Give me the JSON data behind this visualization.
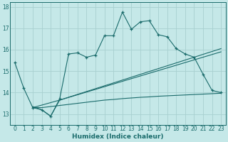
{
  "xlabel": "Humidex (Indice chaleur)",
  "bg_color": "#c5e8e8",
  "grid_color": "#a8d0d0",
  "line_color": "#1a6b6b",
  "xlim": [
    -0.5,
    23.5
  ],
  "ylim": [
    12.5,
    18.2
  ],
  "yticks": [
    13,
    14,
    15,
    16,
    17,
    18
  ],
  "xticks": [
    0,
    1,
    2,
    3,
    4,
    5,
    6,
    7,
    8,
    9,
    10,
    11,
    12,
    13,
    14,
    15,
    16,
    17,
    18,
    19,
    20,
    21,
    22,
    23
  ],
  "series1_x": [
    0,
    1,
    2,
    3,
    4,
    5,
    6,
    7,
    8,
    9,
    10,
    11,
    12,
    13,
    14,
    15,
    16,
    17,
    18,
    19,
    20,
    21,
    22,
    23
  ],
  "series1_y": [
    15.4,
    14.2,
    13.3,
    13.2,
    12.9,
    13.7,
    15.8,
    15.85,
    15.65,
    15.75,
    16.65,
    16.65,
    17.75,
    16.95,
    17.3,
    17.35,
    16.7,
    16.6,
    16.05,
    15.8,
    15.65,
    14.85,
    14.1,
    14.0
  ],
  "series2_x": [
    2,
    3,
    4,
    5,
    6,
    7,
    8,
    9,
    10,
    11,
    12,
    13,
    14,
    15,
    16,
    17,
    18,
    19,
    20,
    21,
    22,
    23
  ],
  "series2_y": [
    13.3,
    13.3,
    13.35,
    13.4,
    13.45,
    13.5,
    13.55,
    13.6,
    13.65,
    13.68,
    13.72,
    13.75,
    13.78,
    13.8,
    13.83,
    13.85,
    13.87,
    13.89,
    13.91,
    13.93,
    13.95,
    13.97
  ],
  "series3_x": [
    2,
    3,
    4,
    5,
    23
  ],
  "series3_y": [
    13.35,
    13.2,
    12.9,
    13.65,
    15.9
  ],
  "series4_x": [
    2,
    5,
    23
  ],
  "series4_y": [
    13.3,
    13.65,
    16.05
  ]
}
